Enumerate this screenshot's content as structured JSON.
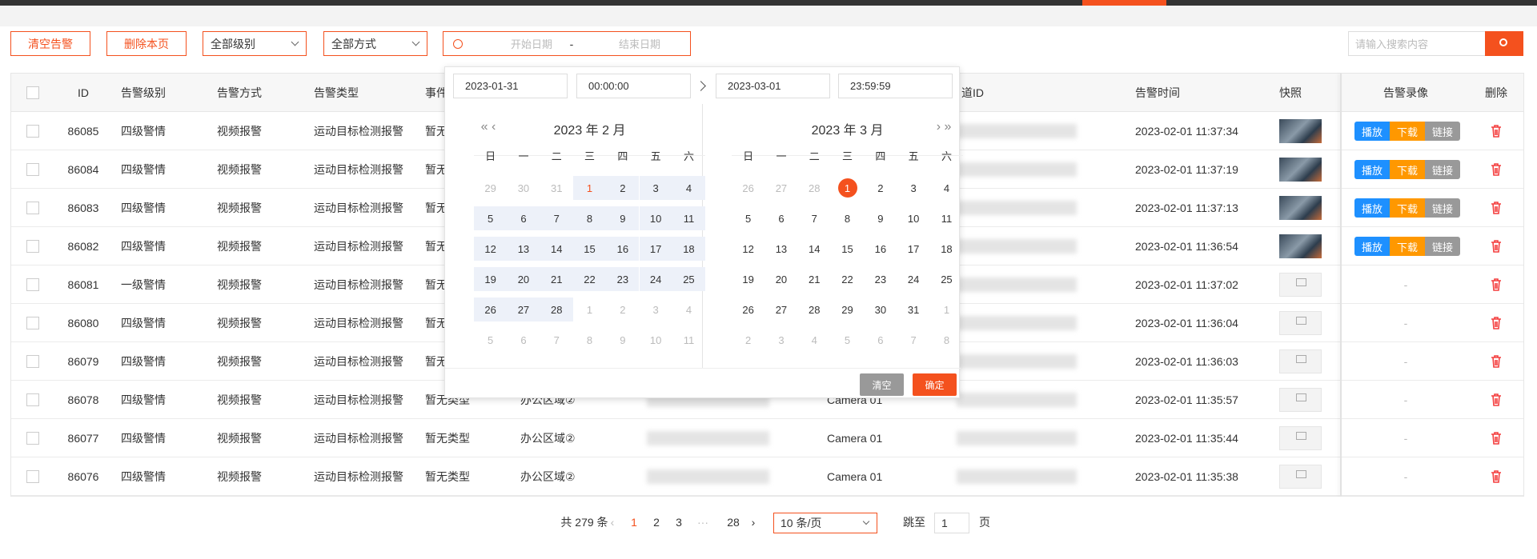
{
  "toolbar": {
    "buttons": [
      "清空告警",
      "删除本页"
    ],
    "selects": [
      "全部级别",
      "全部方式"
    ],
    "date_range": {
      "start": "开始日期",
      "separator": "-",
      "end": "结束日期"
    },
    "search_placeholder": "请输入搜索内容"
  },
  "table": {
    "headers": [
      "ID",
      "告警级别",
      "告警方式",
      "告警类型",
      "事件",
      "道ID",
      "告警时间",
      "快照",
      "告警录像",
      "删除"
    ],
    "rows": [
      {
        "id": 86085,
        "level": "四级警情",
        "method": "视频报警",
        "type": "运动目标检测报警",
        "event": "暂无类型",
        "time": "2023-02-01 11:37:34",
        "recording": [
          "播放",
          "下载",
          "链接"
        ]
      },
      {
        "id": 86084,
        "level": "四级警情",
        "method": "视频报警",
        "type": "运动目标检测报警",
        "event": "暂无类型",
        "time": "2023-02-01 11:37:19",
        "recording": [
          "播放",
          "下载",
          "链接"
        ]
      },
      {
        "id": 86083,
        "level": "四级警情",
        "method": "视频报警",
        "type": "运动目标检测报警",
        "event": "暂无类型",
        "time": "2023-02-01 11:37:13",
        "recording": [
          "播放",
          "下载",
          "链接"
        ]
      },
      {
        "id": 86082,
        "level": "四级警情",
        "method": "视频报警",
        "type": "运动目标检测报警",
        "event": "暂无类型",
        "time": "2023-02-01 11:36:54",
        "recording": [
          "播放",
          "下载",
          "链接"
        ]
      },
      {
        "id": 86081,
        "level": "一级警情",
        "method": "视频报警",
        "type": "运动目标检测报警",
        "event": "暂无类型",
        "time": "2023-02-01 11:37:02",
        "recording": "-"
      },
      {
        "id": 86080,
        "level": "四级警情",
        "method": "视频报警",
        "type": "运动目标检测报警",
        "event": "暂无类型",
        "time": "2023-02-01 11:36:04",
        "recording": "-"
      },
      {
        "id": 86079,
        "level": "四级警情",
        "method": "视频报警",
        "type": "运动目标检测报警",
        "event": "暂无类型",
        "time": "2023-02-01 11:36:03",
        "recording": "-"
      },
      {
        "id": 86078,
        "level": "四级警情",
        "method": "视频报警",
        "type": "运动目标检测报警",
        "event": "暂无类型",
        "area": "办公区域②",
        "camera": "Camera 01",
        "time": "2023-02-01 11:35:57",
        "recording": "-"
      },
      {
        "id": 86077,
        "level": "四级警情",
        "method": "视频报警",
        "type": "运动目标检测报警",
        "event": "暂无类型",
        "area": "办公区域②",
        "camera": "Camera 01",
        "time": "2023-02-01 11:35:44",
        "recording": "-"
      },
      {
        "id": 86076,
        "level": "四级警情",
        "method": "视频报警",
        "type": "运动目标检测报警",
        "event": "暂无类型",
        "area": "办公区域②",
        "camera": "Camera 01",
        "time": "2023-02-01 11:35:38",
        "recording": "-"
      }
    ]
  },
  "pagination": {
    "total": "共 279 条",
    "pages": [
      "1",
      "2",
      "3",
      "···",
      "28"
    ],
    "page_size": "10 条/页",
    "jump_label": "跳至",
    "jump_value": "1",
    "page_unit": "页"
  },
  "date_picker": {
    "start_date": "2023-01-31",
    "start_time": "00:00:00",
    "end_date": "2023-03-01",
    "end_time": "23:59:59",
    "weekdays": [
      "日",
      "一",
      "二",
      "三",
      "四",
      "五",
      "六"
    ],
    "panels": [
      {
        "title": "2023 年 2 月",
        "days": [
          29,
          30,
          31,
          1,
          2,
          3,
          4,
          5,
          6,
          7,
          8,
          9,
          10,
          11,
          12,
          13,
          14,
          15,
          16,
          17,
          18,
          19,
          20,
          21,
          22,
          23,
          24,
          25,
          26,
          27,
          28,
          1,
          2,
          3,
          4,
          5,
          6,
          7,
          8,
          9,
          10,
          11
        ]
      },
      {
        "title": "2023 年 3 月",
        "days": [
          26,
          27,
          28,
          1,
          2,
          3,
          4,
          5,
          6,
          7,
          8,
          9,
          10,
          11,
          12,
          13,
          14,
          15,
          16,
          17,
          18,
          19,
          20,
          21,
          22,
          23,
          24,
          25,
          26,
          27,
          28,
          29,
          30,
          31,
          1,
          2,
          3,
          4,
          5,
          6,
          7,
          8
        ]
      }
    ],
    "clear": "清空",
    "confirm": "确定"
  }
}
